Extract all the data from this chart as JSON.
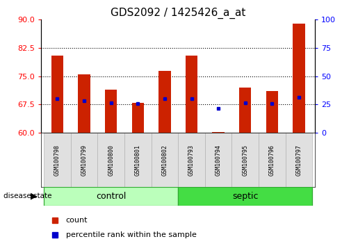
{
  "title": "GDS2092 / 1425426_a_at",
  "samples": [
    "GSM100798",
    "GSM100799",
    "GSM100800",
    "GSM100801",
    "GSM100802",
    "GSM100793",
    "GSM100794",
    "GSM100795",
    "GSM100796",
    "GSM100797"
  ],
  "bar_tops": [
    80.5,
    75.5,
    71.5,
    68.0,
    76.5,
    80.5,
    60.3,
    72.0,
    71.0,
    89.0
  ],
  "bar_bottom": 60.0,
  "percentile_values": [
    69.0,
    68.5,
    68.0,
    67.7,
    69.0,
    69.0,
    66.5,
    68.0,
    67.8,
    69.5
  ],
  "bar_color": "#cc2200",
  "dot_color": "#0000cc",
  "ylim_left": [
    60,
    90
  ],
  "ylim_right": [
    0,
    100
  ],
  "yticks_left": [
    60,
    67.5,
    75,
    82.5,
    90
  ],
  "yticks_right": [
    0,
    25,
    50,
    75,
    100
  ],
  "hlines": [
    67.5,
    75,
    82.5
  ],
  "groups": [
    {
      "label": "control",
      "indices": [
        0,
        1,
        2,
        3,
        4
      ],
      "color": "#bbffbb"
    },
    {
      "label": "septic",
      "indices": [
        5,
        6,
        7,
        8,
        9
      ],
      "color": "#44dd44"
    }
  ],
  "legend_items": [
    {
      "label": "count",
      "color": "#cc2200"
    },
    {
      "label": "percentile rank within the sample",
      "color": "#0000cc"
    }
  ],
  "title_fontsize": 11,
  "tick_fontsize": 8,
  "sample_fontsize": 6,
  "group_fontsize": 9,
  "legend_fontsize": 8
}
